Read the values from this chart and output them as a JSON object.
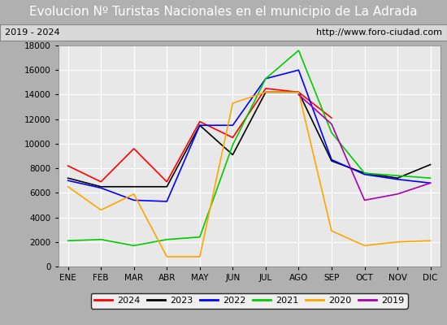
{
  "title": "Evolucion Nº Turistas Nacionales en el municipio de La Adrada",
  "subtitle_left": "2019 - 2024",
  "subtitle_right": "http://www.foro-ciudad.com",
  "months": [
    "ENE",
    "FEB",
    "MAR",
    "ABR",
    "MAY",
    "JUN",
    "JUL",
    "AGO",
    "SEP",
    "OCT",
    "NOV",
    "DIC"
  ],
  "series": {
    "2024": [
      8200,
      6900,
      9600,
      6900,
      11800,
      10500,
      14500,
      14200,
      12100,
      null,
      null,
      null
    ],
    "2023": [
      7200,
      6500,
      6500,
      6500,
      11500,
      9100,
      14200,
      14200,
      8600,
      7600,
      7200,
      8300
    ],
    "2022": [
      7000,
      6400,
      5400,
      5300,
      11500,
      11500,
      15300,
      16000,
      8700,
      7500,
      7100,
      6800
    ],
    "2021": [
      2100,
      2200,
      1700,
      2200,
      2400,
      9900,
      15300,
      17600,
      10900,
      7600,
      7400,
      7200
    ],
    "2020": [
      6500,
      4600,
      5900,
      800,
      800,
      13300,
      14200,
      14200,
      2900,
      1700,
      2000,
      2100
    ],
    "2019": [
      null,
      null,
      null,
      null,
      null,
      null,
      null,
      14000,
      11600,
      5400,
      5900,
      6800
    ]
  },
  "colors": {
    "2024": "#ff0000",
    "2023": "#000000",
    "2022": "#0000ff",
    "2021": "#00cc00",
    "2020": "#ffa500",
    "2019": "#aa00aa"
  },
  "ylim": [
    0,
    18000
  ],
  "yticks": [
    0,
    2000,
    4000,
    6000,
    8000,
    10000,
    12000,
    14000,
    16000,
    18000
  ],
  "title_fontsize": 11,
  "title_bg_color": "#5b9bd5",
  "title_text_color": "#ffffff",
  "plot_bg_color": "#e8e8e8",
  "grid_color": "#ffffff",
  "outer_bg_color": "#b0b0b0",
  "subtitle_bg_color": "#d8d8d8"
}
